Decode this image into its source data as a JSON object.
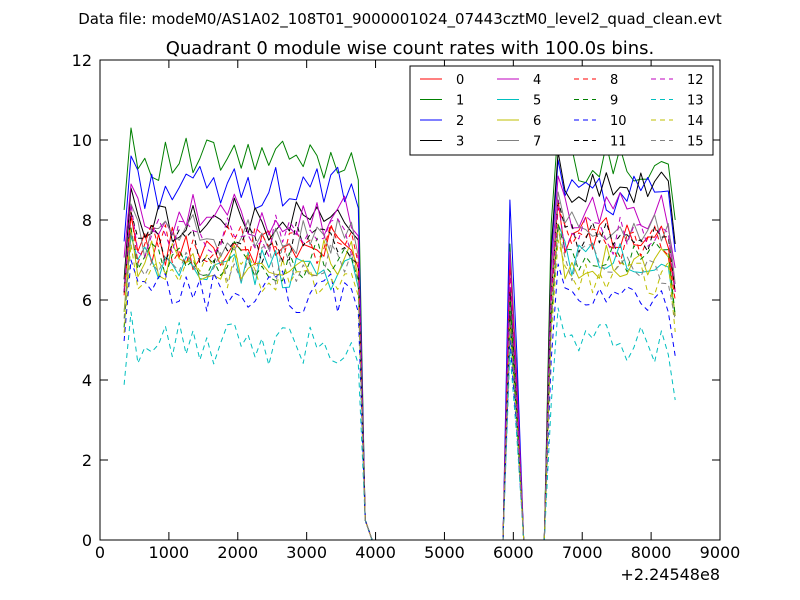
{
  "figure": {
    "suptitle": "Data file: modeM0/AS1A02_108T01_9000001024_07443cztM0_level2_quad_clean.evt"
  },
  "chart_data": {
    "type": "line",
    "title": "Quadrant 0 module wise count rates with 100.0s bins.",
    "xlabel": "",
    "ylabel": "",
    "x_offset_label": "+2.24548e8",
    "xlim": [
      0,
      9000
    ],
    "ylim": [
      0,
      12
    ],
    "x_ticks": [
      0,
      1000,
      2000,
      3000,
      4000,
      5000,
      6000,
      7000,
      8000,
      9000
    ],
    "y_ticks": [
      0,
      2,
      4,
      6,
      8,
      10,
      12
    ],
    "grid": false,
    "legend_position": "top-right",
    "legend_columns": 4,
    "x": [
      350,
      450,
      550,
      650,
      750,
      850,
      950,
      1050,
      1150,
      1250,
      1350,
      1450,
      1550,
      1650,
      1750,
      1850,
      1950,
      2050,
      2150,
      2250,
      2350,
      2450,
      2550,
      2650,
      2750,
      2850,
      2950,
      3050,
      3150,
      3250,
      3350,
      3450,
      3550,
      3650,
      3750,
      3850,
      3950,
      4050,
      4150,
      4250,
      4350,
      4450,
      4550,
      4650,
      4750,
      4850,
      4950,
      5050,
      5150,
      5250,
      5350,
      5450,
      5550,
      5650,
      5750,
      5850,
      5950,
      6050,
      6150,
      6250,
      6350,
      6450,
      6550,
      6650,
      6750,
      6850,
      6950,
      7050,
      7150,
      7250,
      7350,
      7450,
      7550,
      7650,
      7750,
      7850,
      7950,
      8050,
      8150,
      8250,
      8350
    ],
    "series": [
      {
        "name": "0",
        "color": "#ff0000",
        "style": "solid",
        "level": 7.3,
        "end": 7.6,
        "spike": 7.0
      },
      {
        "name": "1",
        "color": "#008000",
        "style": "solid",
        "level": 9.5,
        "end": 9.4,
        "spike": 7.4
      },
      {
        "name": "2",
        "color": "#0000ff",
        "style": "solid",
        "level": 8.8,
        "end": 8.6,
        "spike": 8.5
      },
      {
        "name": "3",
        "color": "#000000",
        "style": "solid",
        "level": 8.0,
        "end": 8.8,
        "spike": 6.3
      },
      {
        "name": "4",
        "color": "#bf00bf",
        "style": "solid",
        "level": 8.1,
        "end": 8.2,
        "spike": 7.2
      },
      {
        "name": "5",
        "color": "#00bfbf",
        "style": "solid",
        "level": 6.8,
        "end": 7.0,
        "spike": 5.3
      },
      {
        "name": "6",
        "color": "#bfbf00",
        "style": "solid",
        "level": 7.0,
        "end": 7.0,
        "spike": 5.6
      },
      {
        "name": "7",
        "color": "#808080",
        "style": "solid",
        "level": 7.6,
        "end": 7.8,
        "spike": 6.0
      },
      {
        "name": "8",
        "color": "#ff0000",
        "style": "dashed",
        "level": 7.4,
        "end": 7.4,
        "spike": 6.8
      },
      {
        "name": "9",
        "color": "#008000",
        "style": "dashed",
        "level": 7.0,
        "end": 7.0,
        "spike": 6.0
      },
      {
        "name": "10",
        "color": "#0000ff",
        "style": "dashed",
        "level": 6.2,
        "end": 6.0,
        "spike": 5.0
      },
      {
        "name": "11",
        "color": "#000000",
        "style": "dashed",
        "level": 7.4,
        "end": 7.6,
        "spike": 5.6
      },
      {
        "name": "12",
        "color": "#bf00bf",
        "style": "dashed",
        "level": 7.6,
        "end": 7.6,
        "spike": 6.6
      },
      {
        "name": "13",
        "color": "#00bfbf",
        "style": "dashed",
        "level": 4.9,
        "end": 4.9,
        "spike": 4.7
      },
      {
        "name": "14",
        "color": "#bfbf00",
        "style": "dashed",
        "level": 6.6,
        "end": 6.6,
        "spike": 5.4
      },
      {
        "name": "15",
        "color": "#808080",
        "style": "dashed",
        "level": 6.9,
        "end": 6.9,
        "spike": 5.5
      }
    ]
  }
}
